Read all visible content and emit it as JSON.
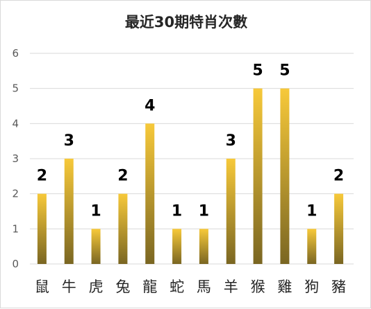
{
  "chart_data": {
    "type": "bar",
    "title": "最近30期特肖次數",
    "categories": [
      "鼠",
      "牛",
      "虎",
      "兔",
      "龍",
      "蛇",
      "馬",
      "羊",
      "猴",
      "雞",
      "狗",
      "豬"
    ],
    "values": [
      2,
      3,
      1,
      2,
      4,
      1,
      1,
      3,
      5,
      5,
      1,
      2
    ],
    "xlabel": "",
    "ylabel": "",
    "ylim": [
      0,
      6
    ],
    "yticks": [
      0,
      1,
      2,
      3,
      4,
      5,
      6
    ],
    "grid": true,
    "legend": "none",
    "data_labels": true,
    "bar_gradient": {
      "top": "#f7c93a",
      "bottom": "#7a6622"
    },
    "grid_color": "#d9d9d9"
  }
}
